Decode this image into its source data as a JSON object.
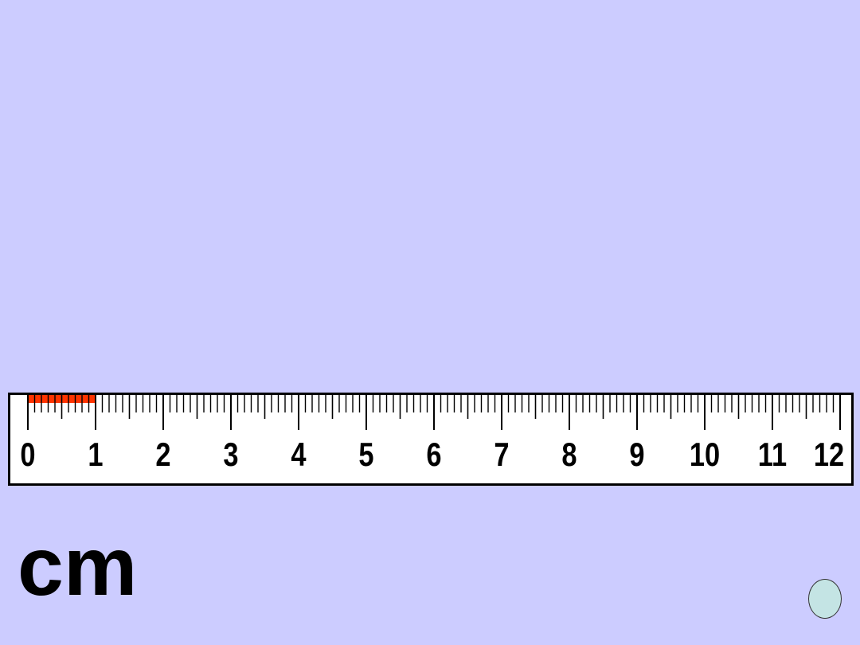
{
  "page": {
    "background_color": "#ccccff"
  },
  "ruler": {
    "unit": "cm",
    "numbers": [
      "0",
      "1",
      "2",
      "3",
      "4",
      "5",
      "6",
      "7",
      "8",
      "9",
      "10",
      "11",
      "12"
    ],
    "subdivisions_per_unit": 10,
    "highlight": {
      "from": 0,
      "to": 1,
      "color": "#ff3300"
    },
    "tick_color": "#000000",
    "face_color": "#ffffff"
  },
  "unit_label": "cm",
  "nav_button": {
    "fill_color": "#c4e4e4",
    "icon": "circle-nav-icon"
  }
}
